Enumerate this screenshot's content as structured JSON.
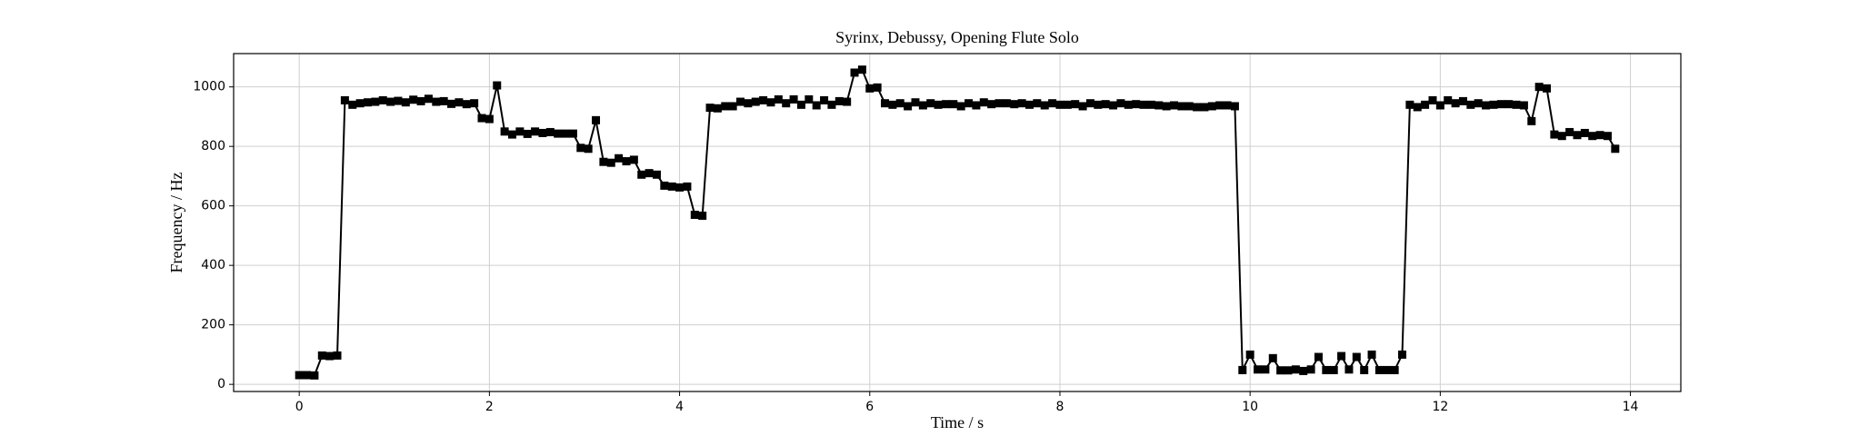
{
  "chart_data": {
    "type": "line",
    "title": "Syrinx, Debussy, Opening Flute Solo",
    "xlabel": "Time / s",
    "ylabel": "Frequency / Hz",
    "x": [
      0,
      0.08,
      0.16,
      0.24,
      0.32,
      0.4,
      0.48,
      0.56,
      0.64,
      0.72,
      0.8,
      0.88,
      0.96,
      1.04,
      1.12,
      1.2,
      1.28,
      1.36,
      1.44,
      1.52,
      1.6,
      1.68,
      1.76,
      1.84,
      1.92,
      2,
      2.08,
      2.16,
      2.24,
      2.32,
      2.4,
      2.48,
      2.56,
      2.64,
      2.72,
      2.8,
      2.88,
      2.96,
      3.04,
      3.12,
      3.2,
      3.28,
      3.36,
      3.44,
      3.52,
      3.6,
      3.68,
      3.76,
      3.84,
      3.92,
      4,
      4.08,
      4.16,
      4.24,
      4.32,
      4.4,
      4.48,
      4.56,
      4.64,
      4.72,
      4.8,
      4.88,
      4.96,
      5.04,
      5.12,
      5.2,
      5.28,
      5.36,
      5.44,
      5.52,
      5.6,
      5.68,
      5.76,
      5.84,
      5.92,
      6,
      6.08,
      6.16,
      6.24,
      6.32,
      6.4,
      6.48,
      6.56,
      6.64,
      6.72,
      6.8,
      6.88,
      6.96,
      7.04,
      7.12,
      7.2,
      7.28,
      7.36,
      7.44,
      7.52,
      7.6,
      7.68,
      7.76,
      7.84,
      7.92,
      8,
      8.08,
      8.16,
      8.24,
      8.32,
      8.4,
      8.48,
      8.56,
      8.64,
      8.72,
      8.8,
      8.88,
      8.96,
      9.04,
      9.12,
      9.2,
      9.28,
      9.36,
      9.44,
      9.52,
      9.6,
      9.68,
      9.76,
      9.84,
      9.92,
      10,
      10.08,
      10.16,
      10.24,
      10.32,
      10.4,
      10.48,
      10.56,
      10.64,
      10.72,
      10.8,
      10.88,
      10.96,
      11.04,
      11.12,
      11.2,
      11.28,
      11.36,
      11.44,
      11.52,
      11.6,
      11.68,
      11.76,
      11.84,
      11.92,
      12,
      12.08,
      12.16,
      12.24,
      12.32,
      12.4,
      12.48,
      12.56,
      12.64,
      12.72,
      12.8,
      12.88,
      12.96,
      13.04,
      13.12,
      13.2,
      13.28,
      13.36,
      13.44,
      13.52,
      13.6,
      13.68,
      13.76,
      13.84
    ],
    "series": [
      {
        "color": "#000000",
        "values": [
          31,
          31,
          30,
          97,
          95,
          97,
          955,
          940,
          945,
          948,
          950,
          955,
          950,
          953,
          948,
          957,
          952,
          960,
          950,
          952,
          943,
          948,
          942,
          945,
          895,
          892,
          1005,
          850,
          840,
          850,
          842,
          850,
          845,
          848,
          843,
          843,
          843,
          795,
          792,
          888,
          748,
          745,
          760,
          750,
          755,
          705,
          710,
          705,
          668,
          665,
          662,
          665,
          570,
          567,
          930,
          928,
          935,
          935,
          950,
          945,
          950,
          955,
          948,
          958,
          945,
          958,
          940,
          958,
          938,
          955,
          940,
          952,
          950,
          1048,
          1058,
          995,
          998,
          945,
          940,
          945,
          935,
          948,
          938,
          945,
          940,
          942,
          942,
          935,
          945,
          938,
          948,
          942,
          945,
          945,
          942,
          945,
          940,
          945,
          938,
          945,
          940,
          940,
          942,
          935,
          945,
          940,
          942,
          938,
          945,
          940,
          942,
          940,
          940,
          938,
          935,
          938,
          935,
          935,
          932,
          932,
          935,
          938,
          938,
          935,
          48,
          100,
          50,
          50,
          88,
          47,
          47,
          50,
          45,
          50,
          92,
          48,
          48,
          95,
          50,
          92,
          48,
          100,
          48,
          48,
          48,
          100,
          940,
          932,
          940,
          955,
          938,
          955,
          945,
          952,
          940,
          945,
          938,
          940,
          942,
          942,
          940,
          938,
          885,
          1000,
          995,
          840,
          835,
          848,
          838,
          845,
          835,
          838,
          835,
          792
        ]
      }
    ],
    "xlim": [
      -0.69,
      14.53
    ],
    "ylim": [
      -24,
      1112
    ],
    "xticks": [
      0,
      2,
      4,
      6,
      8,
      10,
      12,
      14
    ],
    "yticks": [
      0,
      200,
      400,
      600,
      800,
      1000
    ],
    "grid": true
  }
}
